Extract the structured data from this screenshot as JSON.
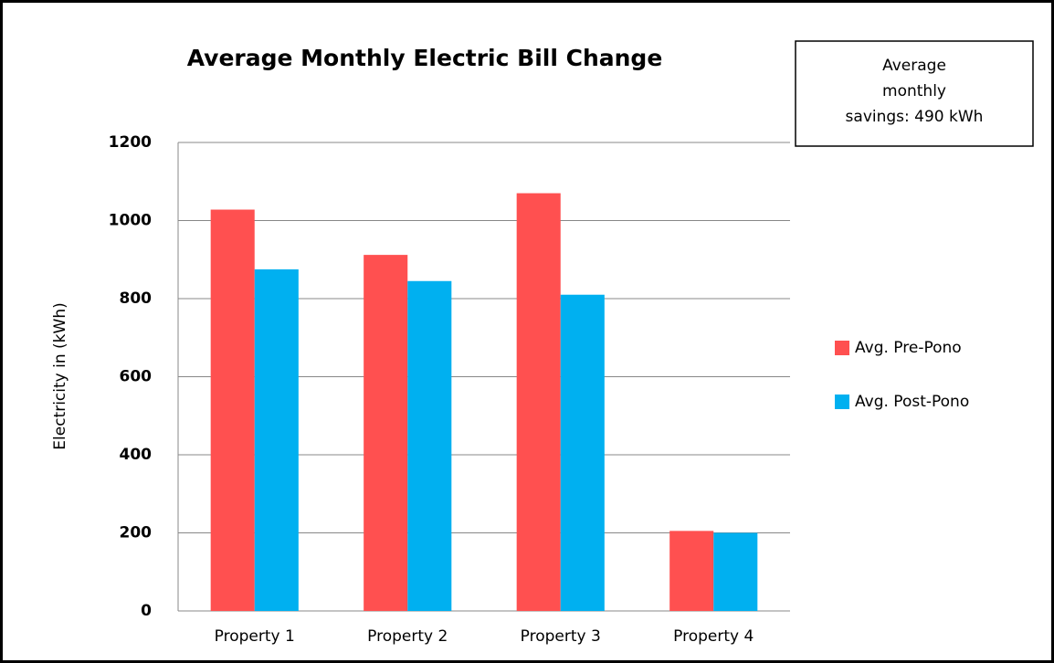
{
  "chart_data": {
    "type": "bar",
    "title": "Average Monthly Electric Bill Change",
    "annotation": [
      "Average",
      "monthly",
      "savings: 490 kWh"
    ],
    "y_label": "Electricity in (kWh)",
    "categories": [
      "Property 1",
      "Property 2",
      "Property 3",
      "Property 4"
    ],
    "series": [
      {
        "name": "Avg. Pre-Pono",
        "color": "#ff5050",
        "values": [
          1028,
          912,
          1070,
          205
        ]
      },
      {
        "name": "Avg. Post-Pono",
        "color": "#00b0f0",
        "values": [
          875,
          845,
          810,
          200
        ]
      }
    ],
    "ylim": [
      0,
      1200
    ],
    "yticks": [
      0,
      200,
      400,
      600,
      800,
      1000,
      1200
    ],
    "grid": true,
    "legend": "right"
  }
}
